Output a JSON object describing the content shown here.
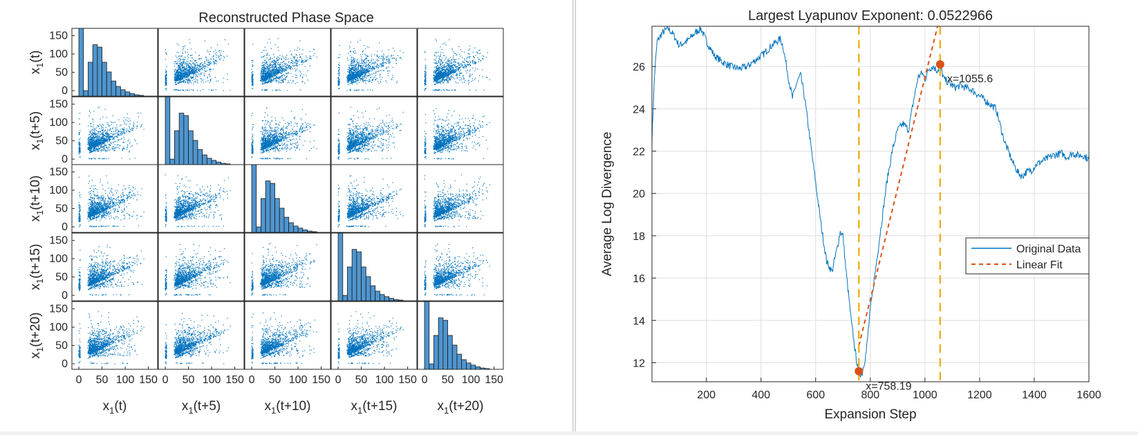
{
  "chart_data": [
    {
      "type": "scatter",
      "title": "Reconstructed Phase Space",
      "variables": [
        "x1(t)",
        "x1(t+5)",
        "x1(t+10)",
        "x1(t+15)",
        "x1(t+20)"
      ],
      "row_labels": [
        "x1(t)",
        "x1(t+5)",
        "x1(t+10)",
        "x1(t+15)",
        "x1(t+20)"
      ],
      "col_labels": [
        "x1(t)",
        "x1(t+5)",
        "x1(t+10)",
        "x1(t+15)",
        "x1(t+20)"
      ],
      "label_base": "x",
      "label_subscript": "1",
      "label_suffixes": [
        "(t)",
        "(t+5)",
        "(t+10)",
        "(t+15)",
        "(t+20)"
      ],
      "axis_range": [
        -15,
        170
      ],
      "ticks": [
        0,
        50,
        100,
        150
      ],
      "diagonal": "histogram",
      "histogram_bins": [
        0,
        10,
        20,
        30,
        40,
        50,
        60,
        70,
        80,
        90,
        100,
        110,
        120,
        130
      ],
      "histogram_counts": [
        2000,
        90,
        560,
        850,
        810,
        560,
        400,
        250,
        160,
        105,
        70,
        42,
        22,
        12
      ],
      "histogram_ylim": [
        0,
        1120
      ],
      "point_color": "#0072bd",
      "bar_color": "#4f95cf"
    },
    {
      "type": "line",
      "title": "Largest Lyapunov Exponent: 0.0522966",
      "xlabel": "Expansion Step",
      "ylabel": "Average Log Divergence",
      "xlim": [
        1,
        1600
      ],
      "ylim": [
        11.1,
        27.9
      ],
      "xticks": [
        200,
        400,
        600,
        800,
        1000,
        1200,
        1400,
        1600
      ],
      "yticks": [
        12,
        14,
        16,
        18,
        20,
        22,
        24,
        26
      ],
      "grid": true,
      "legend_position": "right-center",
      "series": [
        {
          "name": "Original Data",
          "color": "#0072bd",
          "style": "solid",
          "x": [
            1,
            10,
            20,
            40,
            60,
            80,
            100,
            130,
            160,
            180,
            200,
            230,
            260,
            290,
            320,
            350,
            380,
            410,
            440,
            470,
            480,
            500,
            515,
            530,
            545,
            560,
            580,
            600,
            620,
            640,
            660,
            670,
            680,
            690,
            700,
            710,
            730,
            745,
            758,
            770,
            785,
            800,
            820,
            840,
            860,
            880,
            900,
            920,
            940,
            960,
            975,
            990,
            1000,
            1015,
            1030,
            1045,
            1055,
            1070,
            1090,
            1110,
            1130,
            1150,
            1170,
            1200,
            1230,
            1260,
            1290,
            1320,
            1340,
            1355,
            1370,
            1390,
            1410,
            1440,
            1470,
            1500,
            1520,
            1540,
            1560,
            1580,
            1600
          ],
          "y": [
            22.5,
            25.5,
            27.2,
            27.6,
            27.8,
            27.5,
            27.0,
            27.2,
            27.6,
            27.8,
            27.2,
            26.5,
            26.2,
            26.0,
            25.9,
            26.0,
            26.3,
            26.6,
            27.0,
            27.3,
            27.0,
            25.5,
            24.5,
            25.2,
            25.6,
            24.5,
            22.5,
            20.5,
            18.5,
            16.8,
            16.3,
            16.9,
            17.5,
            18.2,
            18.0,
            16.5,
            14.0,
            12.5,
            11.5,
            11.5,
            12.5,
            14.5,
            16.5,
            18.5,
            20.5,
            22.0,
            23.0,
            23.3,
            23.0,
            24.5,
            25.5,
            25.7,
            25.4,
            25.9,
            26.0,
            25.8,
            26.0,
            25.4,
            25.2,
            25.0,
            25.1,
            25.0,
            24.9,
            24.6,
            24.3,
            24.0,
            22.5,
            21.5,
            21.0,
            20.8,
            21.0,
            21.1,
            21.4,
            21.6,
            21.8,
            21.9,
            21.7,
            21.9,
            21.8,
            21.8,
            21.6
          ]
        },
        {
          "name": "Linear Fit",
          "color": "#d95319",
          "style": "dashed",
          "x": [
            758.19,
            1055.6
          ],
          "y": [
            12.8,
            28.4
          ]
        }
      ],
      "vlines": [
        758.19,
        1055.6
      ],
      "vline_color": "#edb120",
      "markers": [
        {
          "x": 758.19,
          "y": 11.6,
          "label": "x=758.19"
        },
        {
          "x": 1055.6,
          "y": 26.1,
          "label": "x=1055.6"
        }
      ],
      "marker_color": "#d95319"
    }
  ]
}
